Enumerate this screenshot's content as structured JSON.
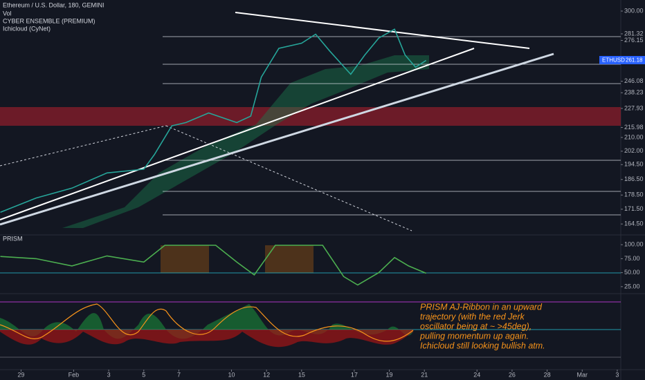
{
  "header": {
    "symbol": "Ethereum / U.S. Dollar, 180, GEMINI",
    "indicators": [
      "Vol",
      "CYBER ENSEMBLE (PREMIUM)",
      "Ichicloud (CyNet)"
    ]
  },
  "price_badge": {
    "symbol": "ETHUSD",
    "price": "261.18"
  },
  "annotation": [
    "PRISM AJ-Ribbon in an upward",
    "trajectory (with the red Jerk",
    "oscillator being at ~ >45deg),",
    "pulling momentum up again.",
    "Ichicloud still looking bullish atm."
  ],
  "chart_data": [
    {
      "type": "line",
      "color": "#26a69a",
      "log": true,
      "x": [
        -1.18,
        0.86,
        2.9,
        4.9,
        7.0,
        7.6,
        8.6,
        9.4,
        10.7,
        12.3,
        13.1,
        13.7,
        14.7,
        16.0,
        16.8,
        17.6,
        18.8,
        19.6,
        20.4,
        21.3,
        21.9,
        22.5,
        23.1
      ],
      "values": [
        170,
        177,
        182,
        190,
        192,
        200,
        217,
        219,
        225,
        219,
        223,
        249,
        270,
        274,
        281,
        268,
        251,
        265,
        278,
        285,
        265,
        256,
        261
      ],
      "xlim": [
        -1.2,
        34.2
      ],
      "ylim": [
        159.5,
        309.5
      ],
      "xticks": [
        {
          "value": 0,
          "label": "29"
        },
        {
          "value": 3,
          "label": "Feb"
        },
        {
          "value": 5,
          "label": "3"
        },
        {
          "value": 7,
          "label": "5"
        },
        {
          "value": 9,
          "label": "7"
        },
        {
          "value": 12,
          "label": "10"
        },
        {
          "value": 14,
          "label": "12"
        },
        {
          "value": 16,
          "label": "15"
        },
        {
          "value": 19,
          "label": "17"
        },
        {
          "value": 21,
          "label": "19"
        },
        {
          "value": 23,
          "label": "21"
        },
        {
          "value": 26,
          "label": "24"
        },
        {
          "value": 28,
          "label": "26"
        },
        {
          "value": 30,
          "label": "28"
        },
        {
          "value": 32,
          "label": "Mar"
        },
        {
          "value": 34,
          "label": "3"
        }
      ],
      "yticks": [
        {
          "value": 300,
          "label": "300.00"
        },
        {
          "value": 281.32,
          "label": "281.32"
        },
        {
          "value": 276.15,
          "label": "276.15"
        },
        {
          "value": 246.08,
          "label": "246.08"
        },
        {
          "value": 238.23,
          "label": "238.23"
        },
        {
          "value": 227.93,
          "label": "227.93"
        },
        {
          "value": 215.98,
          "label": "215.98"
        },
        {
          "value": 210,
          "label": "210.00"
        },
        {
          "value": 202,
          "label": "202.00"
        },
        {
          "value": 194.5,
          "label": "194.50"
        },
        {
          "value": 186.5,
          "label": "186.50"
        },
        {
          "value": 178.5,
          "label": "178.50"
        },
        {
          "value": 171.5,
          "label": "171.50"
        },
        {
          "value": 164.5,
          "label": "164.50"
        }
      ]
    },
    {
      "type": "line",
      "title": "PRISM",
      "color": "#4caf50",
      "x": [
        -1.18,
        0.86,
        2.9,
        4.9,
        7.0,
        8.2,
        11.1,
        12.3,
        13.3,
        14.5,
        17.2,
        18.4,
        19.2,
        20.4,
        21.3,
        22.1,
        23.1
      ],
      "values": [
        79,
        75,
        62,
        80,
        69,
        99,
        99,
        69,
        46,
        99,
        99,
        43,
        28,
        50,
        77,
        62,
        49
      ],
      "xlim": [
        -1.2,
        34.2
      ],
      "ylim": [
        12.5,
        117.5
      ],
      "yticks": [
        {
          "value": 100,
          "label": "100.00"
        },
        {
          "value": 75,
          "label": "75.00"
        },
        {
          "value": 50,
          "label": "50.00"
        },
        {
          "value": 25,
          "label": "25.00"
        }
      ]
    }
  ]
}
